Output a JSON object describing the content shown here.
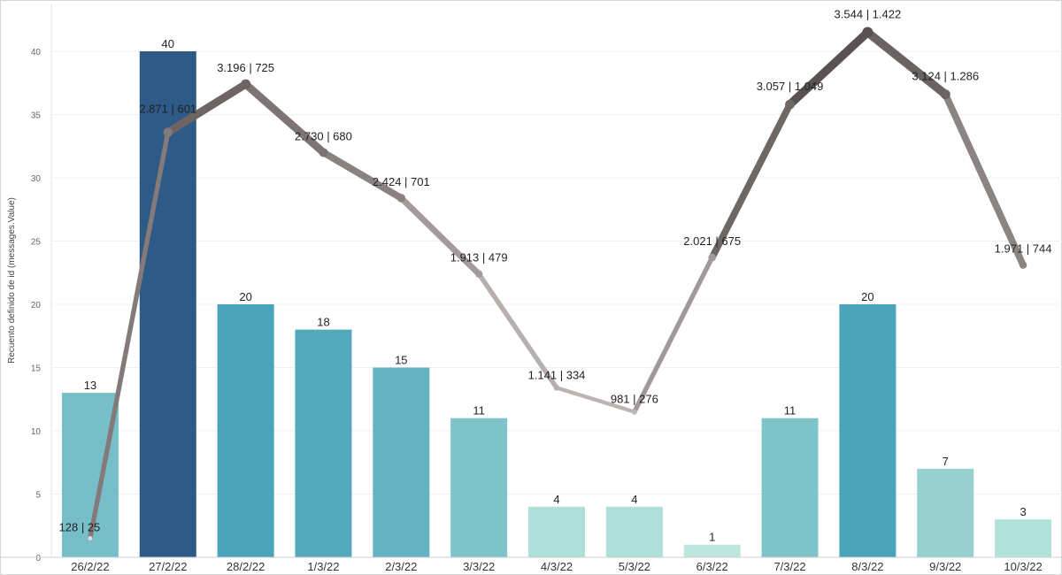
{
  "chart_data": {
    "type": "bar",
    "ylabel": "Recuento definido de id (messages.Value)",
    "ylim": [
      0,
      43
    ],
    "y_ticks": [
      "0",
      "5",
      "10",
      "15",
      "20",
      "25",
      "30",
      "35",
      "40"
    ],
    "grid": true,
    "categories": [
      "26/2/22",
      "27/2/22",
      "28/2/22",
      "1/3/22",
      "2/3/22",
      "3/3/22",
      "4/3/22",
      "5/3/22",
      "6/3/22",
      "7/3/22",
      "8/3/22",
      "9/3/22",
      "10/3/22"
    ],
    "series": [
      {
        "type": "bar",
        "values": [
          13,
          40,
          20,
          18,
          15,
          11,
          4,
          4,
          1,
          11,
          20,
          7,
          3
        ],
        "colors": [
          "#76bfc8",
          "#2e5a87",
          "#4aa5ba",
          "#53a9bc",
          "#63b3c2",
          "#80c4cb",
          "#ace0d8",
          "#ace0d8",
          "#bde7de",
          "#80c4cb",
          "#4aa5ba",
          "#96d1cf",
          "#b2e3db"
        ]
      },
      {
        "type": "line",
        "values": [
          1.5,
          33.6,
          37.4,
          32.0,
          28.4,
          22.4,
          13.4,
          11.5,
          23.7,
          35.8,
          41.5,
          36.6,
          23.1
        ],
        "labels": [
          "128 | 25",
          "2.871 | 601",
          "3.196 | 725",
          "2.730 | 680",
          "2.424 | 701",
          "1.913 | 479",
          "1.141 | 334",
          "981 | 276",
          "2.021 | 675",
          "3.057 | 1.049",
          "3.544 | 1.422",
          "3.124 | 1.286",
          "1.971 | 744"
        ],
        "colors": [
          "#e2dcdc",
          "#837a79",
          "#6d6463",
          "#7d7574",
          "#8a8281",
          "#a29b9a",
          "#b6afae",
          "#bbb4b3",
          "#a09998",
          "#6f6766",
          "#5a5251",
          "#6b6362",
          "#8c8483"
        ]
      }
    ]
  }
}
